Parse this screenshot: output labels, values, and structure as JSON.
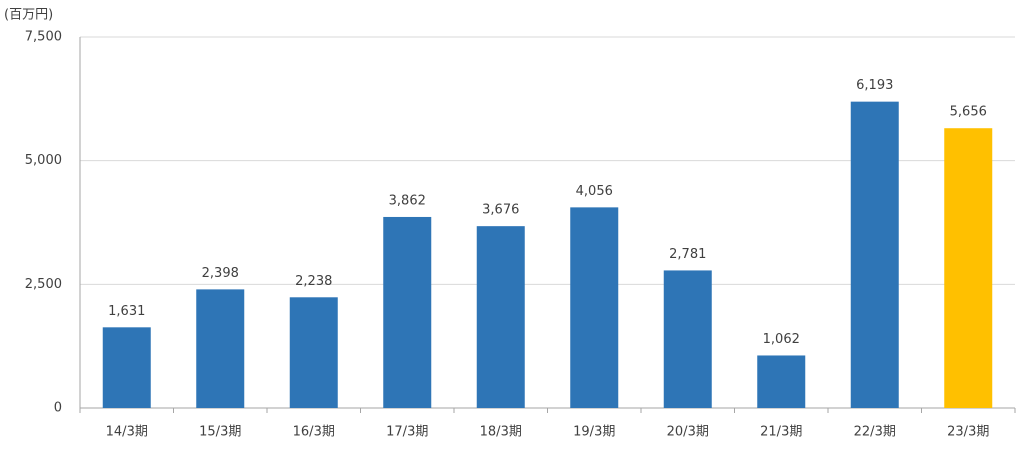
{
  "chart_data": {
    "type": "bar",
    "unit_label": "(百万円)",
    "categories": [
      "14/3期",
      "15/3期",
      "16/3期",
      "17/3期",
      "18/3期",
      "19/3期",
      "20/3期",
      "21/3期",
      "22/3期",
      "23/3期"
    ],
    "values": [
      1631,
      2398,
      2238,
      3862,
      3676,
      4056,
      2781,
      1062,
      6193,
      5656
    ],
    "value_labels": [
      "1,631",
      "2,398",
      "2,238",
      "3,862",
      "3,676",
      "4,056",
      "2,781",
      "1,062",
      "6,193",
      "5,656"
    ],
    "colors": [
      "#2e75b6",
      "#2e75b6",
      "#2e75b6",
      "#2e75b6",
      "#2e75b6",
      "#2e75b6",
      "#2e75b6",
      "#2e75b6",
      "#2e75b6",
      "#ffc000"
    ],
    "ylim": [
      0,
      7500
    ],
    "yticks": [
      0,
      {
        "value": 2500,
        "label": "2,500"
      },
      {
        "value": 5000,
        "label": "5,000"
      },
      {
        "value": 7500,
        "label": "7,500"
      }
    ],
    "grid": true
  }
}
